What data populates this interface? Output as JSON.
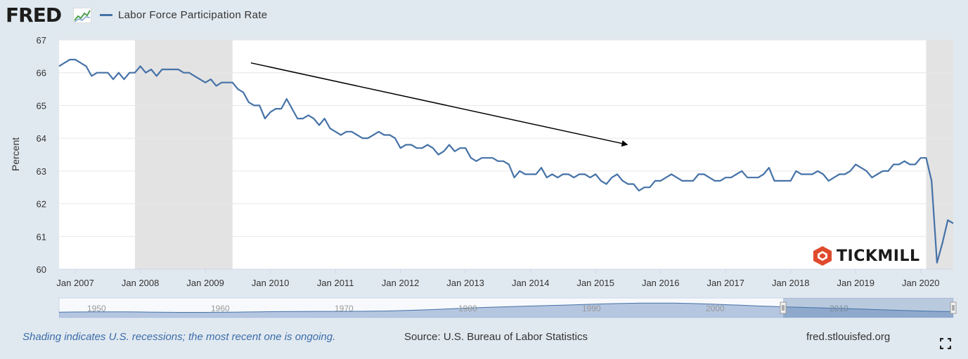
{
  "header": {
    "logo_text": "FRED",
    "legend_label": "Labor Force Participation Rate"
  },
  "colors": {
    "series": "#4572a7",
    "recession": "#e3e3e3",
    "plot_bg": "#ffffff",
    "page_bg": "#e1e9f0",
    "arrow": "#000000",
    "navigator": "#7f9ccb",
    "tickmill": "#e04a2c"
  },
  "footer": {
    "note": "Shading indicates U.S. recessions; the most recent one is ongoing.",
    "source": "Source: U.S. Bureau of Labor Statistics",
    "site": "fred.stlouisfed.org"
  },
  "watermark": {
    "text": "TICKMILL"
  },
  "navigator": {
    "labels": [
      "1950",
      "1960",
      "1970",
      "1980",
      "1990",
      "2000",
      "2010"
    ]
  },
  "chart_data": {
    "type": "line",
    "title": "Labor Force Participation Rate",
    "xlabel": "",
    "ylabel": "Percent",
    "xlim": [
      2006.75,
      2020.5
    ],
    "ylim": [
      60,
      67
    ],
    "yticks": [
      60,
      61,
      62,
      63,
      64,
      65,
      66,
      67
    ],
    "xticks": [
      {
        "label": "Jan 2007",
        "value": 2007
      },
      {
        "label": "Jan 2008",
        "value": 2008
      },
      {
        "label": "Jan 2009",
        "value": 2009
      },
      {
        "label": "Jan 2010",
        "value": 2010
      },
      {
        "label": "Jan 2011",
        "value": 2011
      },
      {
        "label": "Jan 2012",
        "value": 2012
      },
      {
        "label": "Jan 2013",
        "value": 2013
      },
      {
        "label": "Jan 2014",
        "value": 2014
      },
      {
        "label": "Jan 2015",
        "value": 2015
      },
      {
        "label": "Jan 2016",
        "value": 2016
      },
      {
        "label": "Jan 2017",
        "value": 2017
      },
      {
        "label": "Jan 2018",
        "value": 2018
      },
      {
        "label": "Jan 2019",
        "value": 2019
      },
      {
        "label": "Jan 2020",
        "value": 2020
      }
    ],
    "recessions": [
      [
        2007.917,
        2009.417
      ],
      [
        2020.083,
        2020.5
      ]
    ],
    "annotation": {
      "type": "arrow",
      "from": [
        2009.7,
        66.3
      ],
      "to": [
        2015.5,
        63.8
      ]
    },
    "series": [
      {
        "name": "Labor Force Participation Rate",
        "start": 2006.75,
        "step_months": 1,
        "values": [
          66.2,
          66.3,
          66.4,
          66.4,
          66.3,
          66.2,
          65.9,
          66.0,
          66.0,
          66.0,
          65.8,
          66.0,
          65.8,
          66.0,
          66.0,
          66.2,
          66.0,
          66.1,
          65.9,
          66.1,
          66.1,
          66.1,
          66.1,
          66.0,
          66.0,
          65.9,
          65.8,
          65.7,
          65.8,
          65.6,
          65.7,
          65.7,
          65.7,
          65.5,
          65.4,
          65.1,
          65.0,
          65.0,
          64.6,
          64.8,
          64.9,
          64.9,
          65.2,
          64.9,
          64.6,
          64.6,
          64.7,
          64.6,
          64.4,
          64.6,
          64.3,
          64.2,
          64.1,
          64.2,
          64.2,
          64.1,
          64.0,
          64.0,
          64.1,
          64.2,
          64.1,
          64.1,
          64.0,
          63.7,
          63.8,
          63.8,
          63.7,
          63.7,
          63.8,
          63.7,
          63.5,
          63.6,
          63.8,
          63.6,
          63.7,
          63.7,
          63.4,
          63.3,
          63.4,
          63.4,
          63.4,
          63.3,
          63.3,
          63.2,
          62.8,
          63.0,
          62.9,
          62.9,
          62.9,
          63.1,
          62.8,
          62.9,
          62.8,
          62.9,
          62.9,
          62.8,
          62.9,
          62.9,
          62.8,
          62.9,
          62.7,
          62.6,
          62.8,
          62.9,
          62.7,
          62.6,
          62.6,
          62.4,
          62.5,
          62.5,
          62.7,
          62.7,
          62.8,
          62.9,
          62.8,
          62.7,
          62.7,
          62.7,
          62.9,
          62.9,
          62.8,
          62.7,
          62.7,
          62.8,
          62.8,
          62.9,
          63.0,
          62.8,
          62.8,
          62.8,
          62.9,
          63.1,
          62.7,
          62.7,
          62.7,
          62.7,
          63.0,
          62.9,
          62.9,
          62.9,
          63.0,
          62.9,
          62.7,
          62.8,
          62.9,
          62.9,
          63.0,
          63.2,
          63.1,
          63.0,
          62.8,
          62.9,
          63.0,
          63.0,
          63.2,
          63.2,
          63.3,
          63.2,
          63.2,
          63.4,
          63.4,
          62.7,
          60.2,
          60.8,
          61.5,
          61.4
        ]
      }
    ]
  }
}
